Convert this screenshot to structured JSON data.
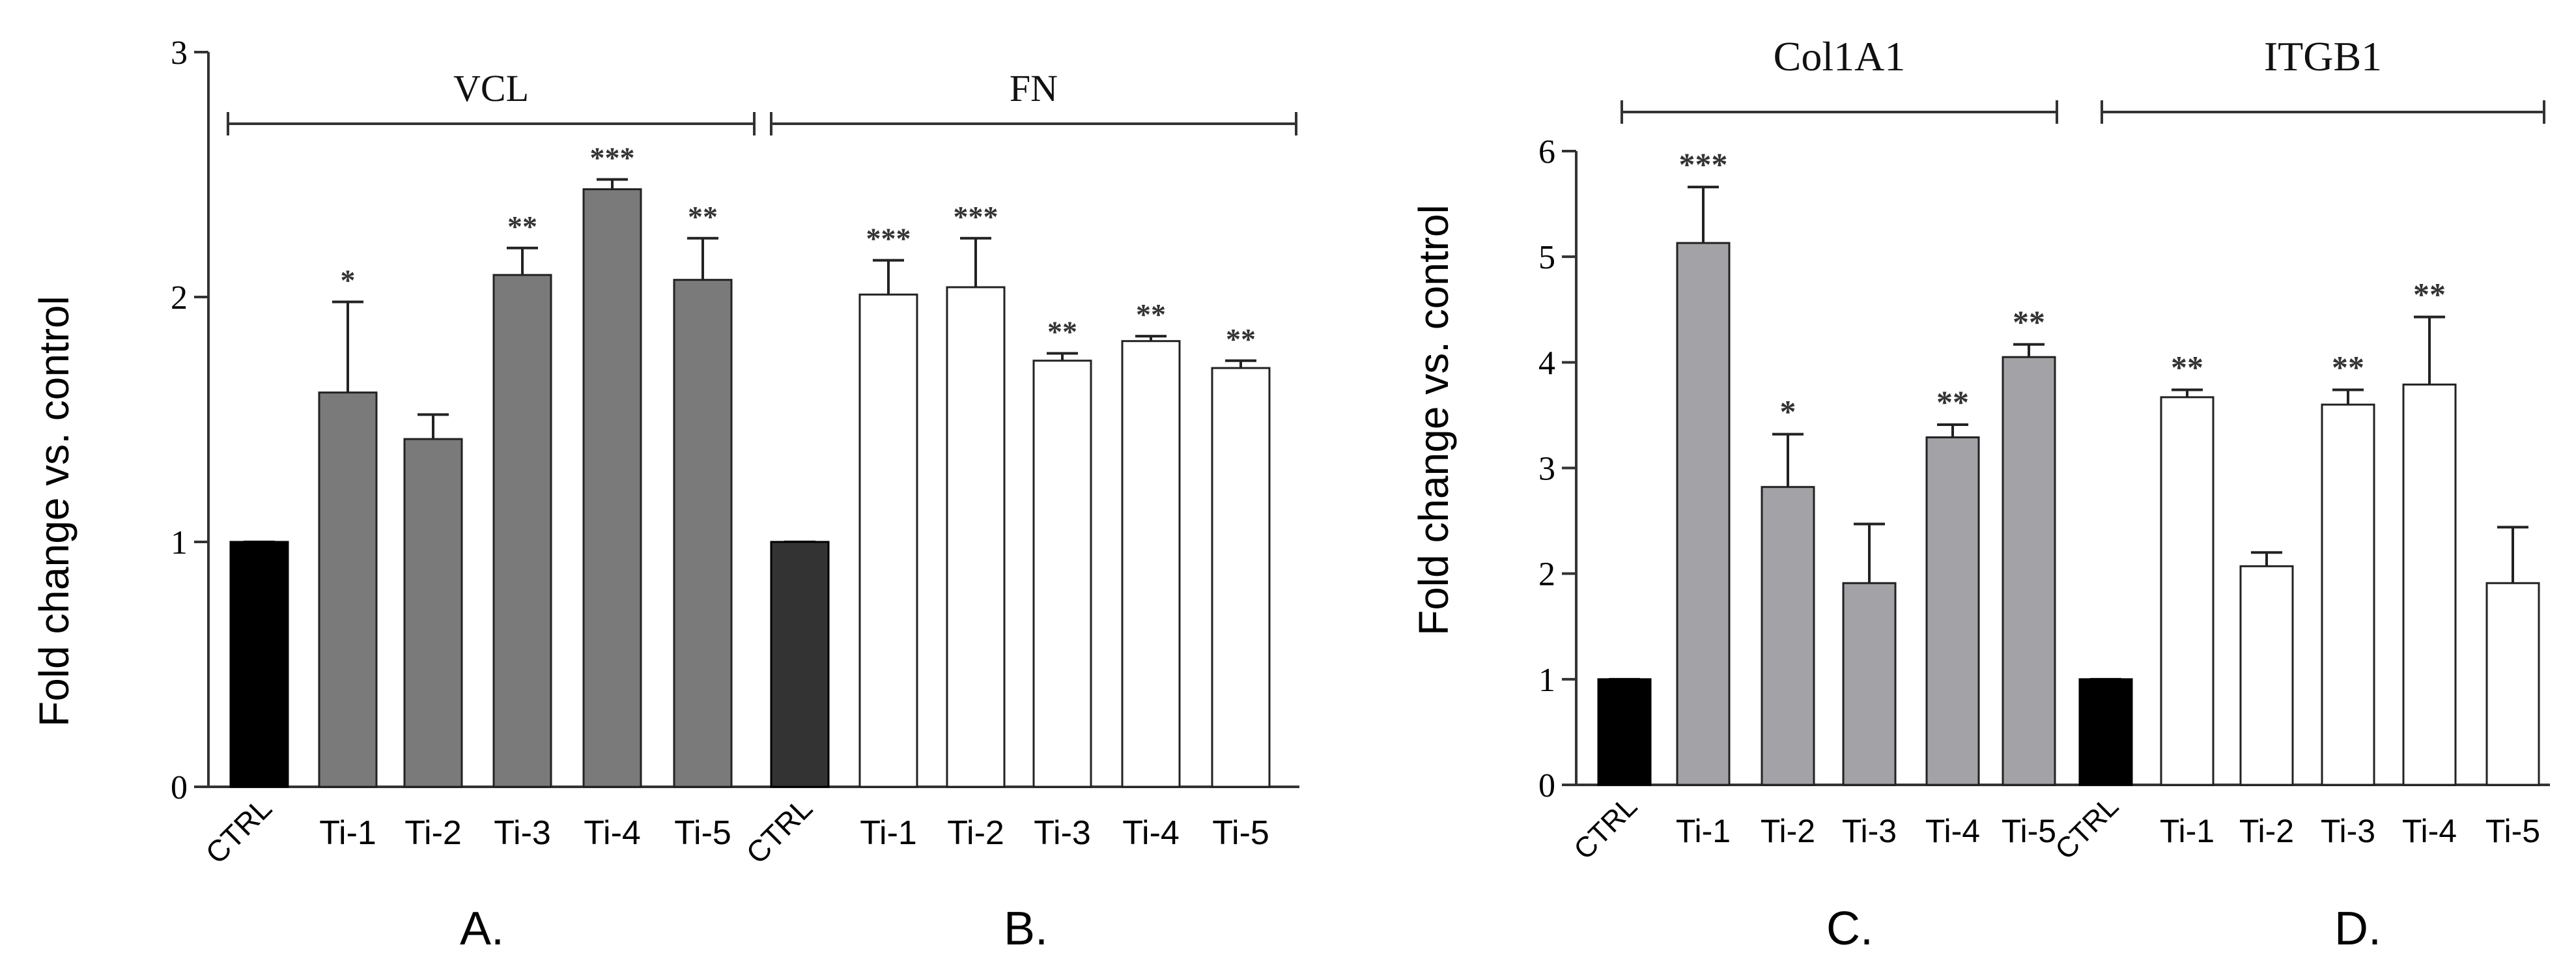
{
  "chart_data": [
    {
      "type": "bar",
      "ylabel": "Fold change vs. control",
      "ylim": [
        0,
        3
      ],
      "yticks": [
        "0",
        "1",
        "2",
        "3"
      ],
      "bar_color": "#7a7a7a",
      "ctrl_color": "#000000",
      "groups": [
        {
          "title": "VCL",
          "panel_label": "A.",
          "categories": [
            "CTRL",
            "Ti-1",
            "Ti-2",
            "Ti-3",
            "Ti-4",
            "Ti-5"
          ],
          "values": [
            1.0,
            1.61,
            1.42,
            2.09,
            2.44,
            2.07
          ],
          "errors": [
            0.0,
            0.37,
            0.1,
            0.11,
            0.04,
            0.17
          ],
          "significance": [
            "",
            "*",
            "",
            "**",
            "***",
            "**"
          ]
        },
        {
          "title": "FN",
          "panel_label": "B.",
          "categories": [
            "CTRL",
            "Ti-1",
            "Ti-2",
            "Ti-3",
            "Ti-4",
            "Ti-5"
          ],
          "values": [
            1.0,
            2.01,
            2.04,
            1.74,
            1.82,
            1.71
          ],
          "errors": [
            0.0,
            0.14,
            0.2,
            0.03,
            0.02,
            0.03
          ],
          "significance": [
            "",
            "***",
            "***",
            "**",
            "**",
            "**"
          ]
        }
      ]
    },
    {
      "type": "bar",
      "ylabel": "Fold change vs. control",
      "ylim": [
        0,
        6
      ],
      "yticks": [
        "0",
        "1",
        "2",
        "3",
        "4",
        "5",
        "6"
      ],
      "bar_color": "#a3a3a7",
      "ctrl_color": "#000000",
      "groups": [
        {
          "title": "Col1A1",
          "panel_label": "C.",
          "categories": [
            "CTRL",
            "Ti-1",
            "Ti-2",
            "Ti-3",
            "Ti-4",
            "Ti-5"
          ],
          "values": [
            1.0,
            5.13,
            2.82,
            1.91,
            3.29,
            4.05
          ],
          "errors": [
            0.0,
            0.53,
            0.5,
            0.56,
            0.12,
            0.12
          ],
          "significance": [
            "",
            "***",
            "*",
            "",
            "**",
            "**"
          ]
        },
        {
          "title": "ITGB1",
          "panel_label": "D.",
          "categories": [
            "CTRL",
            "Ti-1",
            "Ti-2",
            "Ti-3",
            "Ti-4",
            "Ti-5"
          ],
          "values": [
            1.0,
            3.67,
            2.07,
            3.6,
            3.79,
            1.91
          ],
          "errors": [
            0.0,
            0.07,
            0.13,
            0.14,
            0.64,
            0.53
          ],
          "significance": [
            "",
            "**",
            "",
            "**",
            "**",
            ""
          ]
        }
      ]
    }
  ]
}
